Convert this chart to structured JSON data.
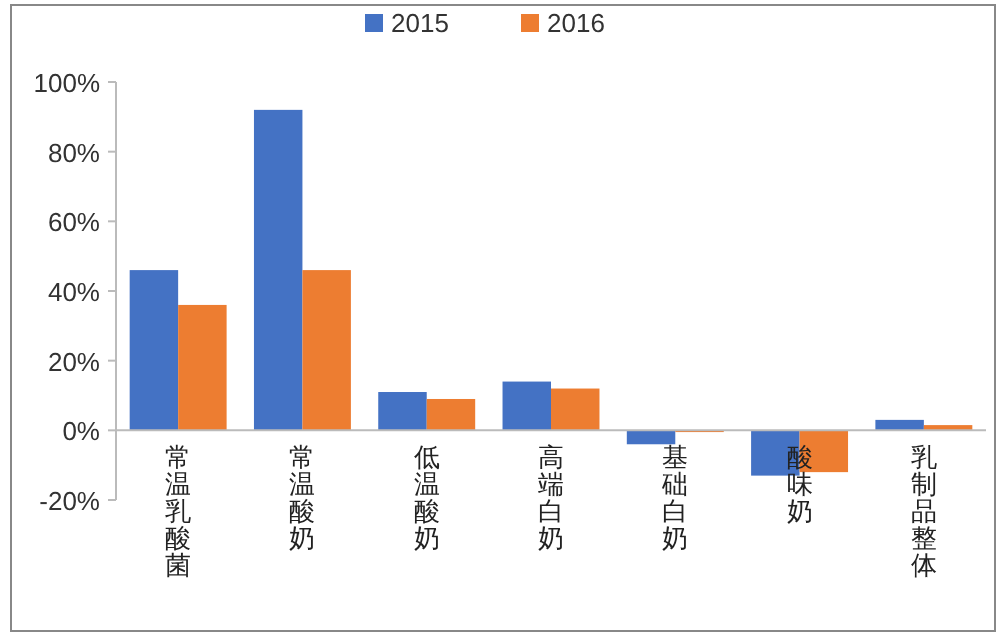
{
  "chart_data": {
    "type": "bar",
    "categories": [
      "常温乳酸菌",
      "常温酸奶",
      "低温酸奶",
      "高端白奶",
      "基础白奶",
      "酸味奶",
      "乳制品整体"
    ],
    "series": [
      {
        "name": "2015",
        "color": "#4472c4",
        "values": [
          46,
          92,
          11,
          14,
          -4,
          -13,
          3
        ]
      },
      {
        "name": "2016",
        "color": "#ed7d31",
        "values": [
          36,
          46,
          9,
          12,
          -0.5,
          -12,
          1.5
        ]
      }
    ],
    "ylim": [
      -20,
      100
    ],
    "yticks": [
      {
        "value": -20,
        "label": "-20%"
      },
      {
        "value": 0,
        "label": "0%"
      },
      {
        "value": 20,
        "label": "20%"
      },
      {
        "value": 40,
        "label": "40%"
      },
      {
        "value": 60,
        "label": "60%"
      },
      {
        "value": 80,
        "label": "80%"
      },
      {
        "value": 100,
        "label": "100%"
      }
    ],
    "grid": false,
    "legend": "top"
  }
}
